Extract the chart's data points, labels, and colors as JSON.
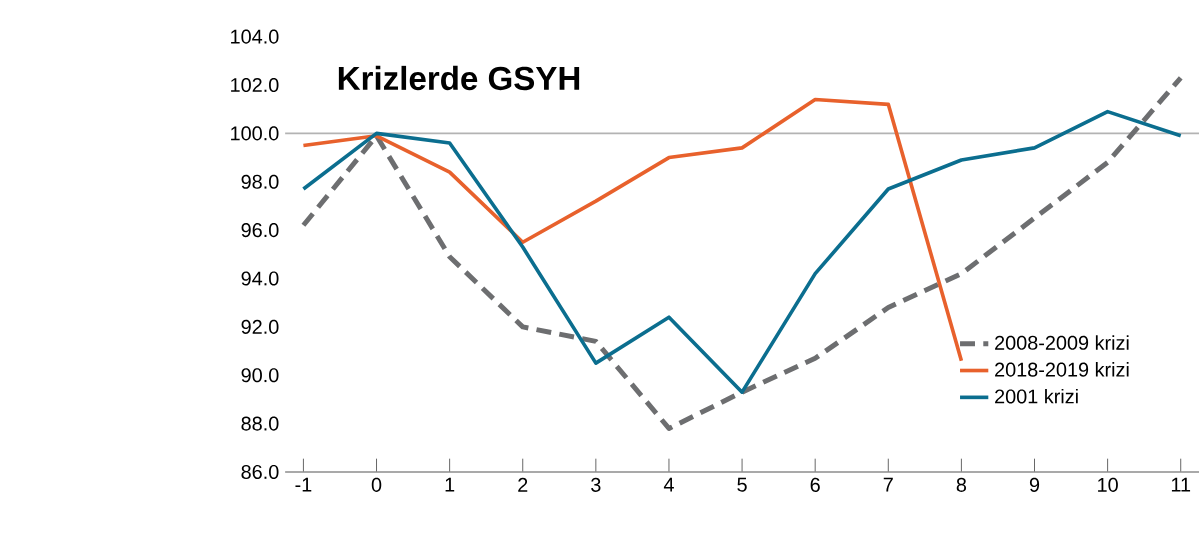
{
  "chart_data": {
    "type": "line",
    "title": "Krizlerde GSYH",
    "x": [
      -1,
      0,
      1,
      2,
      3,
      4,
      5,
      6,
      7,
      8,
      9,
      10,
      11
    ],
    "series": [
      {
        "name": "2008-2009 krizi",
        "color": "#6d6e70",
        "line_style": "dashed",
        "values": [
          96.2,
          99.9,
          94.9,
          92.0,
          91.4,
          87.8,
          89.3,
          90.7,
          92.8,
          94.2,
          96.5,
          98.8,
          102.3
        ]
      },
      {
        "name": "2018-2019 krizi",
        "color": "#e8612c",
        "line_style": "solid",
        "values": [
          99.5,
          99.9,
          98.4,
          95.5,
          97.2,
          99.0,
          99.4,
          101.4,
          101.2,
          90.6,
          null,
          null,
          null
        ]
      },
      {
        "name": "2001 krizi",
        "color": "#0b6e8f",
        "line_style": "solid",
        "values": [
          97.7,
          100.0,
          99.6,
          95.3,
          90.5,
          92.4,
          89.3,
          94.2,
          97.7,
          98.9,
          99.4,
          100.9,
          99.9
        ]
      }
    ],
    "xlim": [
      -1.25,
      11.25
    ],
    "xticks": [
      -1,
      0,
      1,
      2,
      3,
      4,
      5,
      6,
      7,
      8,
      9,
      10,
      11
    ],
    "ylim": [
      86,
      104
    ],
    "yticks": [
      {
        "value": 86,
        "label": "86.0"
      },
      {
        "value": 88,
        "label": "88.0"
      },
      {
        "value": 90,
        "label": "90.0"
      },
      {
        "value": 92,
        "label": "92.0"
      },
      {
        "value": 94,
        "label": "94.0"
      },
      {
        "value": 96,
        "label": "96.0"
      },
      {
        "value": 98,
        "label": "98.0"
      },
      {
        "value": 100,
        "label": "100.0"
      },
      {
        "value": 102,
        "label": "102.0"
      },
      {
        "value": 104,
        "label": "104.0"
      }
    ],
    "ref_lines": [
      {
        "axis": "y",
        "value": 100,
        "color": "#b3b3b3"
      }
    ],
    "grid": false,
    "marker": "none",
    "legend": "bottom right"
  }
}
